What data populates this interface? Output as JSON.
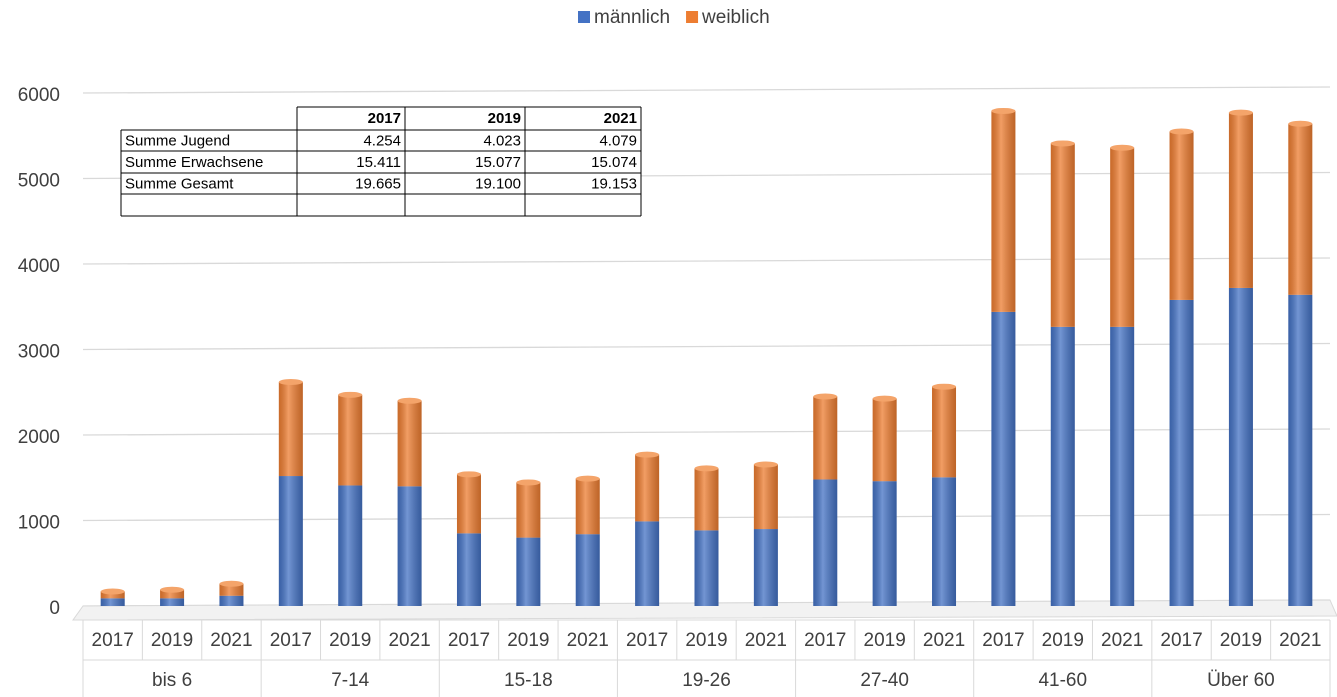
{
  "chart_data": {
    "type": "stacked_bar",
    "categories": [
      "2017",
      "2019",
      "2021",
      "2017",
      "2019",
      "2021",
      "2017",
      "2019",
      "2021",
      "2017",
      "2019",
      "2021",
      "2017",
      "2019",
      "2021",
      "2017",
      "2019",
      "2021",
      "2017",
      "2019",
      "2021"
    ],
    "groups": [
      "bis 6",
      "7-14",
      "15-18",
      "19-26",
      "27-40",
      "41-60",
      "Über 60"
    ],
    "series": [
      {
        "name": "männlich",
        "color": "#4472c4",
        "values": [
          90,
          90,
          120,
          1520,
          1410,
          1400,
          850,
          800,
          840,
          990,
          885,
          900,
          1480,
          1460,
          1505,
          3440,
          3265,
          3265,
          3580,
          3720,
          3640
        ]
      },
      {
        "name": "weiblich",
        "color": "#ed7d31",
        "values": [
          80,
          100,
          140,
          1100,
          1060,
          1000,
          690,
          645,
          650,
          780,
          725,
          755,
          970,
          965,
          1060,
          2350,
          2145,
          2095,
          1970,
          2050,
          2000
        ]
      }
    ],
    "ylim": [
      0,
      6000
    ],
    "yticks": [
      0,
      1000,
      2000,
      3000,
      4000,
      5000,
      6000
    ],
    "grid": true,
    "legend": "top"
  },
  "table": {
    "header": [
      "2017",
      "2019",
      "2021"
    ],
    "rows": [
      {
        "label": "Summe Jugend",
        "cells": [
          "4.254",
          "4.023",
          "4.079"
        ]
      },
      {
        "label": "Summe Erwachsene",
        "cells": [
          "15.411",
          "15.077",
          "15.074"
        ]
      },
      {
        "label": "Summe Gesamt",
        "cells": [
          "19.665",
          "19.100",
          "19.153"
        ]
      }
    ]
  }
}
